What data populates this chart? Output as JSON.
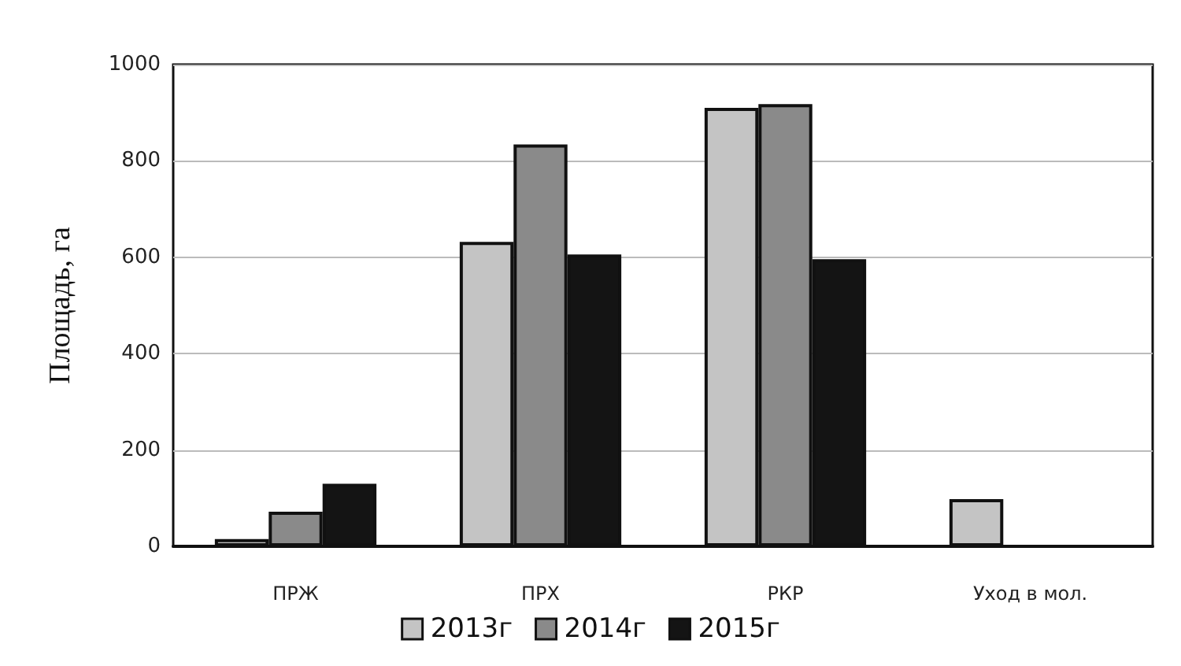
{
  "chart_data": {
    "type": "bar",
    "ylabel": "Площадь, га",
    "categories": [
      "ПРЖ",
      "ПРХ",
      "РКР",
      "Уход в мол."
    ],
    "series": [
      {
        "name": "2013г",
        "color": "#c4c4c4",
        "values": [
          15,
          632,
          910,
          98
        ]
      },
      {
        "name": "2014г",
        "color": "#8a8a8a",
        "values": [
          72,
          834,
          918,
          null
        ]
      },
      {
        "name": "2015г",
        "color": "#141414",
        "values": [
          130,
          606,
          596,
          null
        ]
      }
    ],
    "ylim": [
      0,
      1000
    ],
    "yticks": [
      0,
      200,
      400,
      600,
      800,
      1000
    ],
    "grid": "y",
    "legend": "bottom"
  }
}
